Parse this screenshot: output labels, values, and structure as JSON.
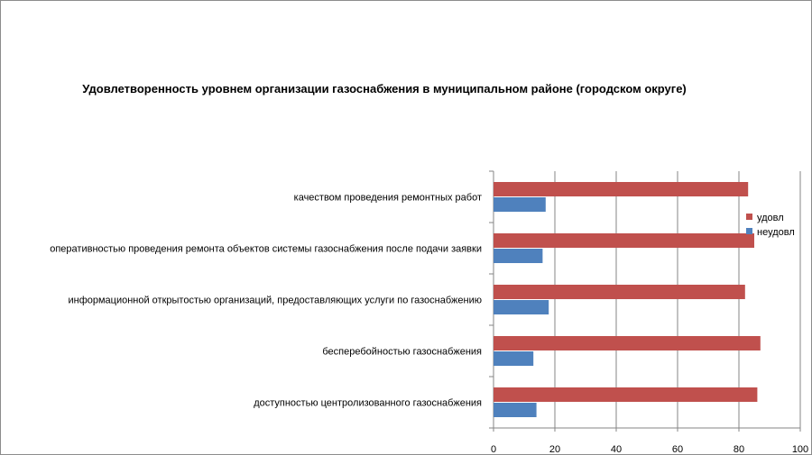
{
  "chart_data": {
    "type": "bar",
    "orientation": "horizontal",
    "title": "Удовлетворенность уровнем организации газоснабжения в муниципальном районе (городском округе)",
    "xlabel": "",
    "ylabel": "",
    "categories": [
      "качеством проведения ремонтных работ",
      "оперативностью проведения ремонта объектов системы газоснабжения после подачи заявки",
      "информационной открытостью организаций, предоставляющих услуги по газоснабжению",
      "бесперебойностью газоснабжения",
      "доступностью центролизованного газоснабжения"
    ],
    "series": [
      {
        "name": "удовл",
        "color": "#c0504d",
        "values": [
          83,
          85,
          82,
          87,
          86
        ]
      },
      {
        "name": "неудовл",
        "color": "#4f81bd",
        "values": [
          17,
          16,
          18,
          13,
          14
        ]
      }
    ],
    "xlim": [
      0,
      100
    ],
    "xticks": [
      0,
      20,
      40,
      60,
      80,
      100
    ],
    "grid": true,
    "legend_position": "right"
  }
}
